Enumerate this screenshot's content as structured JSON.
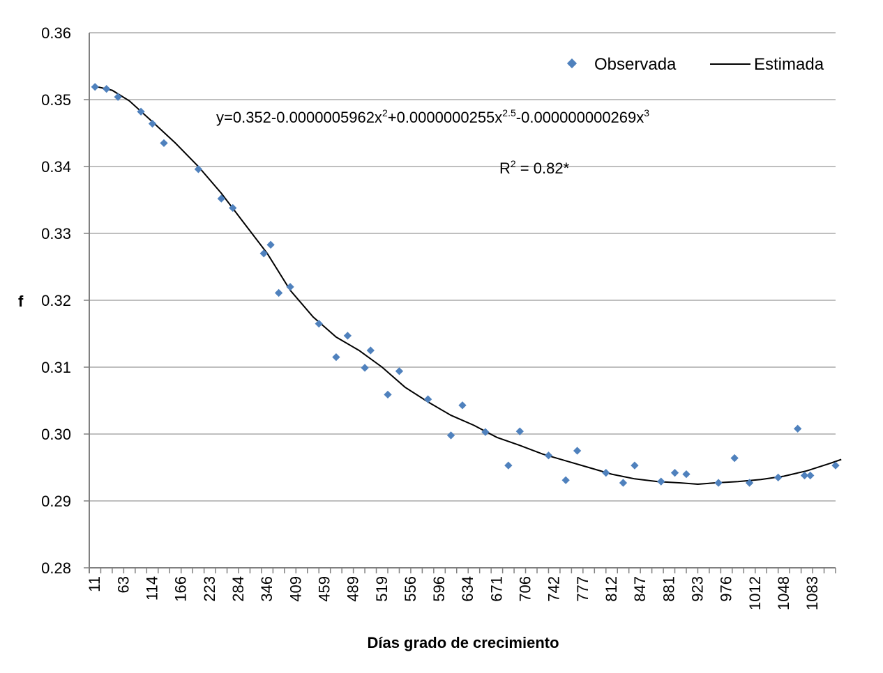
{
  "chart_data": {
    "type": "scatter",
    "xlabel": "Días grado de crecimiento",
    "ylabel": "f",
    "ylim": [
      0.28,
      0.36
    ],
    "y_ticks": [
      "0.28",
      "0.29",
      "0.30",
      "0.31",
      "0.32",
      "0.33",
      "0.34",
      "0.35",
      "0.36"
    ],
    "x_ticks": [
      "11",
      "63",
      "114",
      "166",
      "223",
      "284",
      "346",
      "409",
      "459",
      "489",
      "519",
      "556",
      "596",
      "634",
      "671",
      "706",
      "742",
      "777",
      "812",
      "847",
      "881",
      "923",
      "976",
      "1012",
      "1048",
      "1083"
    ],
    "grid": true,
    "legend_position": "top-right",
    "legend": {
      "observed": "Observada",
      "estimated": "Estimada"
    },
    "equation": {
      "prefix": "y=0.352-0.0000005962x",
      "sup1": "2",
      "mid1": "+0.0000000255x",
      "sup2": "2.5",
      "mid2": "-0.000000000269x",
      "sup3": "3"
    },
    "r2": {
      "prefix": "R",
      "sup": "2",
      "suffix": " = 0.82*"
    },
    "colors": {
      "observed": "#4f81bd",
      "estimated": "#000000",
      "grid": "#bfbfbf"
    },
    "series": [
      {
        "name": "Observada",
        "kind": "scatter",
        "points": [
          [
            0.0,
            0.3519
          ],
          [
            1,
            0.3516
          ],
          [
            2,
            0.3504
          ],
          [
            4,
            0.3482
          ],
          [
            5,
            0.3464
          ],
          [
            6,
            0.3435
          ],
          [
            9,
            0.3396
          ],
          [
            11,
            0.3352
          ],
          [
            12,
            0.3338
          ],
          [
            14.7,
            0.327
          ],
          [
            15.3,
            0.3283
          ],
          [
            16,
            0.3211
          ],
          [
            17,
            0.322
          ],
          [
            19.5,
            0.3165
          ],
          [
            21,
            0.3115
          ],
          [
            22,
            0.3147
          ],
          [
            23.5,
            0.3099
          ],
          [
            24,
            0.3125
          ],
          [
            25.5,
            0.3059
          ],
          [
            26.5,
            0.3094
          ],
          [
            29,
            0.3052
          ],
          [
            31,
            0.2998
          ],
          [
            32,
            0.3043
          ],
          [
            34,
            0.3003
          ],
          [
            36,
            0.2953
          ],
          [
            37,
            0.3004
          ],
          [
            39.5,
            0.2968
          ],
          [
            41,
            0.2931
          ],
          [
            42,
            0.2975
          ],
          [
            44.5,
            0.2942
          ],
          [
            46,
            0.2927
          ],
          [
            47,
            0.2953
          ],
          [
            49.3,
            0.2929
          ],
          [
            50.5,
            0.2942
          ],
          [
            51.5,
            0.294
          ],
          [
            54.3,
            0.2927
          ],
          [
            55.7,
            0.2964
          ],
          [
            57,
            0.2927
          ],
          [
            59.5,
            0.2935
          ],
          [
            61.2,
            0.3008
          ],
          [
            61.8,
            0.2938
          ],
          [
            62.3,
            0.2938
          ],
          [
            64.5,
            0.2953
          ]
        ]
      },
      {
        "name": "Estimada",
        "kind": "line",
        "points": [
          [
            0,
            0.352
          ],
          [
            1.5,
            0.3514
          ],
          [
            3,
            0.3498
          ],
          [
            5,
            0.3467
          ],
          [
            7,
            0.3435
          ],
          [
            9,
            0.34
          ],
          [
            11,
            0.336
          ],
          [
            13,
            0.3315
          ],
          [
            15,
            0.327
          ],
          [
            17,
            0.3215
          ],
          [
            19,
            0.3175
          ],
          [
            20,
            0.316
          ],
          [
            21,
            0.3145
          ],
          [
            23,
            0.3125
          ],
          [
            25,
            0.31
          ],
          [
            27,
            0.307
          ],
          [
            29,
            0.3048
          ],
          [
            31,
            0.3028
          ],
          [
            33,
            0.3013
          ],
          [
            35,
            0.2995
          ],
          [
            37,
            0.2983
          ],
          [
            39,
            0.297
          ],
          [
            41,
            0.296
          ],
          [
            43,
            0.295
          ],
          [
            45,
            0.294
          ],
          [
            47,
            0.2933
          ],
          [
            49,
            0.2929
          ],
          [
            51,
            0.2927
          ],
          [
            52.5,
            0.2925
          ],
          [
            54,
            0.2927
          ],
          [
            56,
            0.2929
          ],
          [
            58,
            0.2932
          ],
          [
            60,
            0.2937
          ],
          [
            62,
            0.2945
          ],
          [
            64,
            0.2956
          ],
          [
            65,
            0.2962
          ]
        ]
      }
    ]
  }
}
